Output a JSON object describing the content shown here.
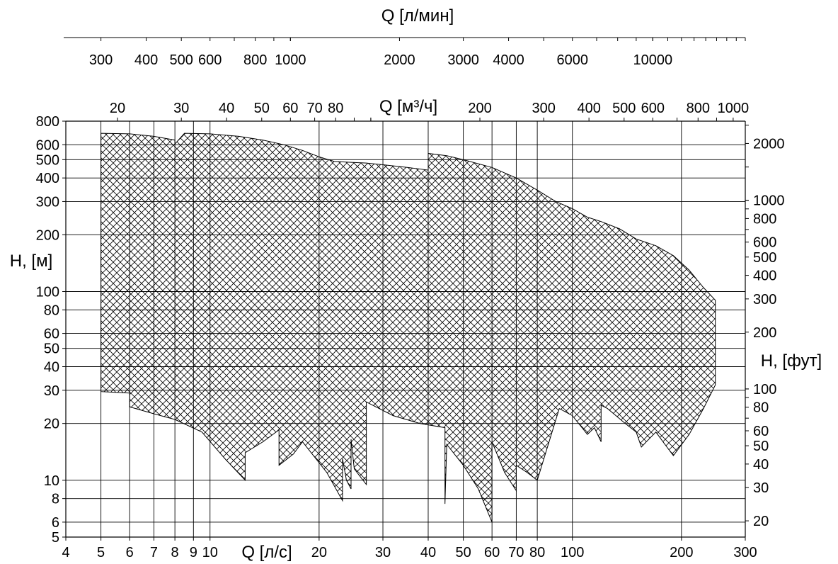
{
  "chart_data": {
    "type": "area",
    "x_scale": "log",
    "y_scale": "log",
    "grid": true,
    "legend": "none",
    "fill_pattern": "crosshatch",
    "colors": {
      "ink": "#000000",
      "background": "#ffffff"
    },
    "axes": {
      "bottom": {
        "label": "Q  [л/с]",
        "range": [
          4,
          300
        ],
        "unit": "l/s",
        "ticks": [
          4,
          5,
          6,
          7,
          8,
          9,
          10,
          20,
          30,
          40,
          50,
          60,
          70,
          80,
          100,
          200,
          300
        ],
        "tick_labels": [
          "4",
          "5",
          "6",
          "7",
          "8",
          "9",
          "10",
          "20",
          "30",
          "40",
          "50",
          "60",
          "70",
          "80",
          "100",
          "200",
          "300"
        ]
      },
      "top_m3h": {
        "label": "Q  [м³/ч]",
        "unit": "m3/h",
        "ticks": [
          20,
          30,
          40,
          50,
          60,
          70,
          80,
          200,
          300,
          400,
          500,
          600,
          800,
          1000
        ],
        "tick_labels": [
          "20",
          "30",
          "40",
          "50",
          "60",
          "70",
          "80",
          "200",
          "300",
          "400",
          "500",
          "600",
          "800",
          "1000"
        ]
      },
      "top_lmin": {
        "label": "Q [л/мин]",
        "unit": "l/min",
        "ticks": [
          300,
          400,
          500,
          600,
          800,
          1000,
          2000,
          3000,
          4000,
          6000,
          10000
        ],
        "tick_labels": [
          "300",
          "400",
          "500",
          "600",
          "800",
          "1000",
          "2000",
          "3000",
          "4000",
          "6000",
          "10000"
        ]
      },
      "left": {
        "label": "H, [м]",
        "range": [
          5,
          800
        ],
        "unit": "m",
        "ticks": [
          5,
          6,
          8,
          10,
          20,
          30,
          40,
          50,
          60,
          80,
          100,
          200,
          300,
          400,
          500,
          600,
          800
        ],
        "tick_labels": [
          "5",
          "6",
          "8",
          "10",
          "20",
          "30",
          "40",
          "50",
          "60",
          "80",
          "100",
          "200",
          "300",
          "400",
          "500",
          "600",
          "800"
        ]
      },
      "right": {
        "label": "H, [фут]",
        "unit": "ft",
        "ticks": [
          20,
          30,
          40,
          50,
          60,
          80,
          100,
          200,
          300,
          400,
          500,
          600,
          800,
          1000,
          2000
        ],
        "tick_labels": [
          "20",
          "30",
          "40",
          "50",
          "60",
          "80",
          "100",
          "200",
          "300",
          "400",
          "500",
          "600",
          "800",
          "1000",
          "2000"
        ]
      }
    },
    "series": [
      {
        "coverage_boundary": [
          [
            5,
            215
          ],
          [
            5,
            690
          ],
          [
            6,
            685
          ],
          [
            7,
            665
          ],
          [
            8,
            635
          ],
          [
            8,
            605
          ],
          [
            8.5,
            690
          ],
          [
            10,
            685
          ],
          [
            12,
            665
          ],
          [
            14,
            635
          ],
          [
            16,
            600
          ],
          [
            18,
            560
          ],
          [
            20,
            518
          ],
          [
            22,
            490
          ],
          [
            24,
            485
          ],
          [
            27,
            480
          ],
          [
            30,
            470
          ],
          [
            35,
            455
          ],
          [
            40,
            440
          ],
          [
            40,
            540
          ],
          [
            45,
            525
          ],
          [
            50,
            500
          ],
          [
            60,
            455
          ],
          [
            70,
            400
          ],
          [
            80,
            345
          ],
          [
            90,
            300
          ],
          [
            100,
            275
          ],
          [
            110,
            248
          ],
          [
            120,
            235
          ],
          [
            135,
            215
          ],
          [
            150,
            190
          ],
          [
            170,
            175
          ],
          [
            190,
            155
          ],
          [
            210,
            130
          ],
          [
            230,
            105
          ],
          [
            248,
            90
          ],
          [
            248,
            32
          ],
          [
            230,
            24
          ],
          [
            210,
            17.5
          ],
          [
            190,
            13.5
          ],
          [
            180,
            15.5
          ],
          [
            170,
            18
          ],
          [
            160,
            16
          ],
          [
            155,
            15
          ],
          [
            150,
            18
          ],
          [
            140,
            20
          ],
          [
            125,
            24
          ],
          [
            120,
            25
          ],
          [
            120,
            16
          ],
          [
            115,
            19
          ],
          [
            110,
            17.5
          ],
          [
            100,
            22
          ],
          [
            92,
            24
          ],
          [
            80,
            10
          ],
          [
            75,
            11
          ],
          [
            70,
            12
          ],
          [
            70,
            8.8
          ],
          [
            65,
            11
          ],
          [
            60,
            16
          ],
          [
            60,
            6
          ],
          [
            55,
            9
          ],
          [
            50,
            12
          ],
          [
            45,
            15.5
          ],
          [
            44.5,
            7.5
          ],
          [
            44.5,
            19
          ],
          [
            38,
            20
          ],
          [
            32,
            22
          ],
          [
            27,
            26
          ],
          [
            27,
            9.5
          ],
          [
            25,
            11.5
          ],
          [
            24.5,
            16.5
          ],
          [
            24.5,
            9
          ],
          [
            23.8,
            10
          ],
          [
            23.2,
            13
          ],
          [
            23.2,
            7.8
          ],
          [
            21,
            11
          ],
          [
            18,
            16
          ],
          [
            17,
            13.8
          ],
          [
            15.5,
            12
          ],
          [
            15.5,
            18.5
          ],
          [
            14,
            16
          ],
          [
            12.5,
            14
          ],
          [
            12.5,
            10
          ],
          [
            11,
            13
          ],
          [
            9.5,
            18
          ],
          [
            8,
            21
          ],
          [
            7,
            22.5
          ],
          [
            6,
            24.5
          ],
          [
            6,
            29
          ],
          [
            5,
            29.5
          ]
        ]
      }
    ]
  }
}
